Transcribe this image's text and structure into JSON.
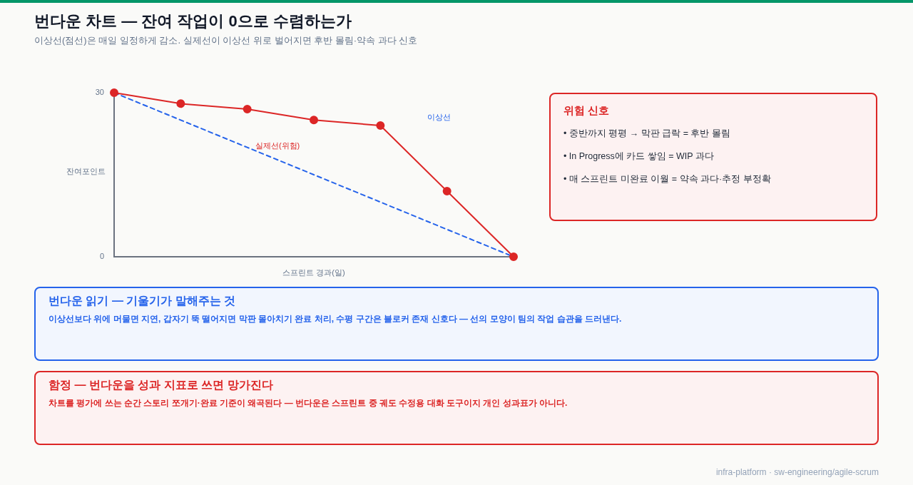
{
  "chart_data": [
    {
      "type": "line",
      "title": "번다운 차트 — 잔여 작업이 0으로 수렴하는가",
      "subtitle": "이상선(점선)은 매일 일정하게 감소. 실제선이 이상선 위로 벌어지면 후반 몰림·약속 과다 신호",
      "xlabel": "스프린트 경과(일)",
      "ylabel": "잔여포인트",
      "categories": [
        null,
        null,
        null,
        null,
        null,
        null,
        null
      ],
      "series": [
        {
          "name": "실제선(위험)",
          "color": "#dc2626",
          "values": [
            30,
            28,
            27,
            25,
            24,
            12,
            0
          ],
          "marker": "circle",
          "line_style": "solid"
        },
        {
          "name": "이상선",
          "color": "#2563eb",
          "values": [
            30,
            25,
            20,
            15,
            10,
            5,
            0
          ],
          "marker": "none",
          "line_style": "dashed"
        }
      ],
      "ylim": [
        0,
        30
      ],
      "yticks": [
        0,
        30
      ],
      "tick_labels": "y",
      "grid": false,
      "legend": false,
      "annotations": [
        "infra-platform · sw-engineering/agile-scrum"
      ]
    },
    {
      "type": "other",
      "title": "위험 신호",
      "color": "#dc2626",
      "annotations": [
        "• 중반까지 평평 → 막판 급락 = 후반 몰림",
        "• In Progress에 카드 쌓임 = WIP 과다",
        "• 매 스프린트 미완료 이월 = 약속 과다·추정 부정확"
      ]
    },
    {
      "type": "other",
      "title": "번다운 읽기 — 기울기가 말해주는 것",
      "color": "#2563eb",
      "annotations": [
        "이상선보다 위에 머물면 지연, 갑자기 뚝 떨어지면 막판 몰아치기 완료 처리, 수평 구간은 블로커 존재 신호다 — 선의 모양이 팀의 작업 습관을 드러낸다."
      ]
    },
    {
      "type": "other",
      "title": "함정 — 번다운을 성과 지표로 쓰면 망가진다",
      "color": "#dc2626",
      "annotations": [
        "차트를 평가에 쓰는 순간 스토리 쪼개기·완료 기준이 왜곡된다 — 번다운은 스프린트 중 궤도 수정용 대화 도구이지 개인 성과표가 아니다."
      ]
    }
  ]
}
